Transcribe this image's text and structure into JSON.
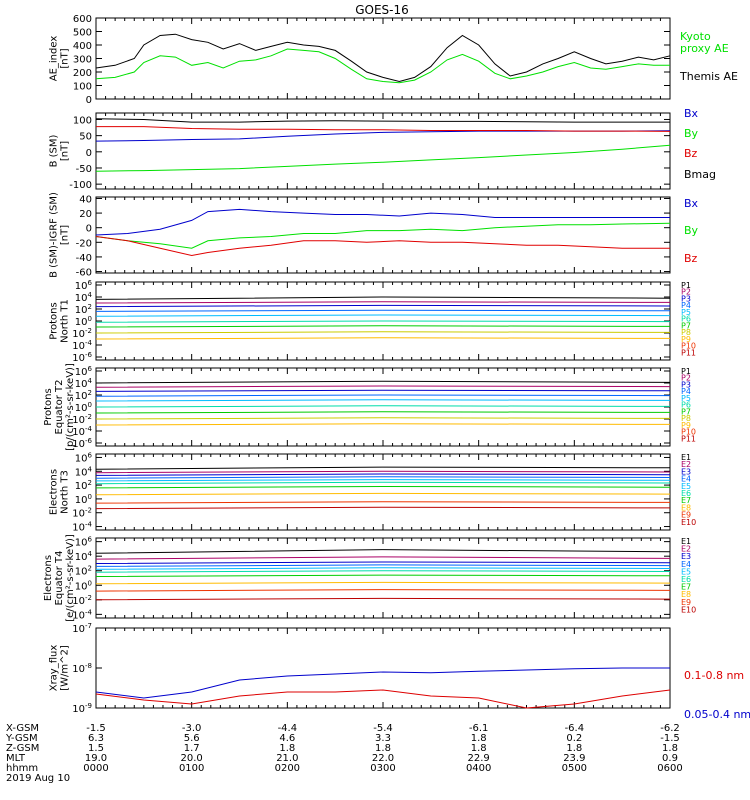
{
  "title": "GOES-16",
  "chart_data": [
    {
      "type": "line",
      "ylabel": [
        "AE_index",
        "[nT]"
      ],
      "y_ticks": [
        "0",
        "100",
        "200",
        "300",
        "400",
        "500",
        "600"
      ],
      "ylim": [
        0,
        600
      ],
      "y_scale": "linear",
      "x_hours": [
        0.0,
        0.2,
        0.4,
        0.5,
        0.67,
        0.83,
        1.0,
        1.17,
        1.33,
        1.5,
        1.67,
        1.83,
        2.0,
        2.17,
        2.33,
        2.5,
        2.67,
        2.83,
        3.0,
        3.17,
        3.33,
        3.5,
        3.67,
        3.83,
        4.0,
        4.17,
        4.33,
        4.5,
        4.67,
        4.83,
        5.0,
        5.17,
        5.33,
        5.5,
        5.67,
        5.83,
        6.0
      ],
      "series": [
        {
          "name": "Themis AE",
          "color": "#000000",
          "values": [
            230,
            250,
            300,
            400,
            470,
            480,
            440,
            420,
            370,
            410,
            360,
            390,
            420,
            400,
            390,
            360,
            280,
            200,
            160,
            130,
            160,
            240,
            380,
            470,
            400,
            260,
            170,
            200,
            260,
            300,
            350,
            300,
            260,
            280,
            310,
            290,
            320
          ]
        },
        {
          "name": "Kyoto proxy AE",
          "color": "#00e000",
          "values": [
            150,
            160,
            200,
            270,
            320,
            310,
            250,
            270,
            230,
            280,
            290,
            320,
            370,
            360,
            350,
            300,
            220,
            150,
            130,
            120,
            140,
            200,
            290,
            330,
            280,
            190,
            150,
            170,
            200,
            240,
            270,
            230,
            220,
            240,
            260,
            250,
            250
          ]
        }
      ],
      "legend": [
        "Kyoto",
        "proxy AE",
        "Themis AE"
      ]
    },
    {
      "type": "line",
      "ylabel": [
        "B (SM)",
        "[nT]"
      ],
      "y_ticks": [
        "-100",
        "-50",
        "0",
        "50",
        "100"
      ],
      "ylim": [
        -115,
        120
      ],
      "y_scale": "linear",
      "x_hours": [
        0.0,
        0.5,
        1.0,
        1.5,
        2.0,
        2.5,
        3.0,
        3.5,
        4.0,
        4.5,
        5.0,
        5.5,
        6.0
      ],
      "series": [
        {
          "name": "Bx",
          "color": "#0000cc",
          "values": [
            33,
            35,
            38,
            40,
            48,
            55,
            60,
            62,
            64,
            64,
            64,
            64,
            65
          ]
        },
        {
          "name": "By",
          "color": "#00e000",
          "values": [
            -60,
            -58,
            -55,
            -52,
            -45,
            -38,
            -32,
            -25,
            -18,
            -10,
            -2,
            8,
            20
          ]
        },
        {
          "name": "Bz",
          "color": "#e00000",
          "values": [
            78,
            78,
            72,
            70,
            70,
            68,
            68,
            66,
            66,
            66,
            64,
            64,
            63
          ]
        },
        {
          "name": "Bmag",
          "color": "#000000",
          "values": [
            102,
            100,
            92,
            92,
            95,
            96,
            95,
            94,
            94,
            93,
            92,
            92,
            92
          ]
        }
      ],
      "legend": [
        "Bx",
        "By",
        "Bz",
        "Bmag"
      ]
    },
    {
      "type": "line",
      "ylabel": [
        "B (SM)-IGRF (SM)",
        "[nT]"
      ],
      "y_ticks": [
        "-60",
        "-40",
        "-20",
        "0",
        "20",
        "40"
      ],
      "ylim": [
        -62,
        42
      ],
      "y_scale": "linear",
      "x_hours": [
        0.0,
        0.33,
        0.67,
        1.0,
        1.17,
        1.5,
        1.83,
        2.17,
        2.5,
        2.83,
        3.17,
        3.5,
        3.83,
        4.17,
        4.5,
        4.83,
        5.17,
        5.5,
        6.0
      ],
      "series": [
        {
          "name": "Bx",
          "color": "#0000cc",
          "values": [
            -10,
            -8,
            -2,
            10,
            22,
            25,
            22,
            20,
            18,
            18,
            16,
            20,
            18,
            14,
            14,
            14,
            14,
            14,
            14
          ]
        },
        {
          "name": "By",
          "color": "#00e000",
          "values": [
            -12,
            -18,
            -22,
            -28,
            -18,
            -14,
            -12,
            -8,
            -8,
            -4,
            -4,
            -2,
            -4,
            0,
            2,
            4,
            4,
            5,
            6
          ]
        },
        {
          "name": "Bz",
          "color": "#e00000",
          "values": [
            -12,
            -18,
            -28,
            -38,
            -34,
            -28,
            -24,
            -18,
            -18,
            -20,
            -18,
            -20,
            -20,
            -22,
            -24,
            -24,
            -26,
            -28,
            -28
          ]
        }
      ],
      "legend": [
        "Bx",
        "By",
        "Bz"
      ]
    },
    {
      "type": "line",
      "ylabel": [
        "Protons",
        "North T1"
      ],
      "y_ticks": [
        "10^-6",
        "10^-4",
        "10^-2",
        "10^0",
        "10^2",
        "10^4",
        "10^6"
      ],
      "ylim": [
        -6.5,
        6.5
      ],
      "y_scale": "log",
      "x_hours": [
        0.0,
        3.0,
        6.0
      ],
      "series": [
        {
          "name": "P1",
          "color": "#000000",
          "values_log10": [
            3.6,
            4.0,
            3.8
          ]
        },
        {
          "name": "P2",
          "color": "#aa0066",
          "values_log10": [
            3.0,
            3.2,
            3.1
          ]
        },
        {
          "name": "P3",
          "color": "#0000cc",
          "values_log10": [
            2.4,
            2.6,
            2.5
          ]
        },
        {
          "name": "P4",
          "color": "#0066ff",
          "values_log10": [
            1.6,
            1.8,
            1.7
          ]
        },
        {
          "name": "P5",
          "color": "#00bbff",
          "values_log10": [
            0.8,
            1.0,
            0.9
          ]
        },
        {
          "name": "P6",
          "color": "#00ddaa",
          "values_log10": [
            -0.2,
            0.0,
            -0.1
          ]
        },
        {
          "name": "P7",
          "color": "#00cc00",
          "values_log10": [
            -1.0,
            -0.8,
            -0.9
          ]
        },
        {
          "name": "P8",
          "color": "#cccc00",
          "values_log10": [
            -2.0,
            -1.8,
            -1.9
          ]
        },
        {
          "name": "P9",
          "color": "#ffbb00",
          "values_log10": [
            -3.0,
            -2.8,
            -2.9
          ]
        }
      ],
      "legend": [
        "P1",
        "P2",
        "P3",
        "P4",
        "P5",
        "P6",
        "P7",
        "P8",
        "P9",
        "P10",
        "P11"
      ]
    },
    {
      "type": "line",
      "ylabel": [
        "Protons",
        "Equator T2",
        "[p/(cm²-s-sr-keV)]"
      ],
      "y_ticks": [
        "10^-6",
        "10^-4",
        "10^-2",
        "10^0",
        "10^2",
        "10^4",
        "10^6"
      ],
      "ylim": [
        -6.5,
        6.5
      ],
      "y_scale": "log",
      "x_hours": [
        0.0,
        3.0,
        6.0
      ],
      "series": [
        {
          "name": "P1",
          "color": "#000000",
          "values_log10": [
            4.0,
            4.3,
            4.1
          ]
        },
        {
          "name": "P2",
          "color": "#aa0066",
          "values_log10": [
            3.3,
            3.5,
            3.4
          ]
        },
        {
          "name": "P3",
          "color": "#0000cc",
          "values_log10": [
            2.6,
            2.8,
            2.7
          ]
        },
        {
          "name": "P4",
          "color": "#0066ff",
          "values_log10": [
            1.8,
            2.0,
            1.9
          ]
        },
        {
          "name": "P5",
          "color": "#00bbff",
          "values_log10": [
            1.0,
            1.2,
            1.1
          ]
        },
        {
          "name": "P6",
          "color": "#00ddaa",
          "values_log10": [
            0.0,
            0.2,
            0.1
          ]
        },
        {
          "name": "P7",
          "color": "#00cc00",
          "values_log10": [
            -1.0,
            -0.8,
            -0.9
          ]
        },
        {
          "name": "P8",
          "color": "#cccc00",
          "values_log10": [
            -2.0,
            -1.8,
            -1.9
          ]
        },
        {
          "name": "P9",
          "color": "#ffbb00",
          "values_log10": [
            -3.0,
            -2.8,
            -2.9
          ]
        }
      ],
      "legend": [
        "P1",
        "P2",
        "P3",
        "P4",
        "P5",
        "P6",
        "P7",
        "P8",
        "P9",
        "P10",
        "P11"
      ]
    },
    {
      "type": "line",
      "ylabel": [
        "Electrons",
        "North T3"
      ],
      "y_ticks": [
        "10^-4",
        "10^-2",
        "10^0",
        "10^2",
        "10^4",
        "10^6"
      ],
      "ylim": [
        -4.5,
        6.5
      ],
      "y_scale": "log",
      "x_hours": [
        0.0,
        3.0,
        6.0
      ],
      "series": [
        {
          "name": "E1",
          "color": "#000000",
          "values_log10": [
            4.3,
            4.6,
            4.5
          ]
        },
        {
          "name": "E2",
          "color": "#aa0066",
          "values_log10": [
            3.8,
            4.0,
            3.9
          ]
        },
        {
          "name": "E3",
          "color": "#0000cc",
          "values_log10": [
            3.4,
            3.6,
            3.5
          ]
        },
        {
          "name": "E4",
          "color": "#0066ff",
          "values_log10": [
            3.0,
            3.2,
            3.1
          ]
        },
        {
          "name": "E5",
          "color": "#00bbff",
          "values_log10": [
            2.6,
            2.8,
            2.7
          ]
        },
        {
          "name": "E6",
          "color": "#00ddaa",
          "values_log10": [
            2.2,
            2.4,
            2.3
          ]
        },
        {
          "name": "E7",
          "color": "#00cc00",
          "values_log10": [
            1.6,
            1.8,
            1.7
          ]
        },
        {
          "name": "E8",
          "color": "#ffbb00",
          "values_log10": [
            0.6,
            0.8,
            0.7
          ]
        },
        {
          "name": "E9",
          "color": "#ee3300",
          "values_log10": [
            -0.6,
            -0.4,
            -0.5
          ]
        },
        {
          "name": "E10",
          "color": "#bb0000",
          "values_log10": [
            -1.4,
            -1.2,
            -1.3
          ]
        }
      ],
      "legend": [
        "E1",
        "E2",
        "E3",
        "E4",
        "E5",
        "E6",
        "E7",
        "E8",
        "E9",
        "E10"
      ]
    },
    {
      "type": "line",
      "ylabel": [
        "Electrons",
        "Equator T4",
        "[e/(cm²-s-sr-keV)]"
      ],
      "y_ticks": [
        "10^-4",
        "10^-2",
        "10^0",
        "10^2",
        "10^4",
        "10^6"
      ],
      "ylim": [
        -4.5,
        6.5
      ],
      "y_scale": "log",
      "x_hours": [
        0.0,
        3.0,
        6.0
      ],
      "series": [
        {
          "name": "E1",
          "color": "#000000",
          "values_log10": [
            4.4,
            4.9,
            4.6
          ]
        },
        {
          "name": "E2",
          "color": "#aa0066",
          "values_log10": [
            3.6,
            3.9,
            3.7
          ]
        },
        {
          "name": "E3",
          "color": "#0000cc",
          "values_log10": [
            3.0,
            3.2,
            3.1
          ]
        },
        {
          "name": "E4",
          "color": "#0066ff",
          "values_log10": [
            2.6,
            2.8,
            2.7
          ]
        },
        {
          "name": "E5",
          "color": "#00bbff",
          "values_log10": [
            2.2,
            2.4,
            2.3
          ]
        },
        {
          "name": "E6",
          "color": "#00ddaa",
          "values_log10": [
            1.8,
            2.0,
            1.9
          ]
        },
        {
          "name": "E7",
          "color": "#00cc00",
          "values_log10": [
            1.2,
            1.4,
            1.3
          ]
        },
        {
          "name": "E8",
          "color": "#ffbb00",
          "values_log10": [
            0.2,
            0.4,
            0.3
          ]
        },
        {
          "name": "E9",
          "color": "#ee3300",
          "values_log10": [
            -0.8,
            -0.6,
            -0.7
          ]
        },
        {
          "name": "E10",
          "color": "#bb0000",
          "values_log10": [
            -2.0,
            -1.8,
            -1.9
          ]
        }
      ],
      "legend": [
        "E1",
        "E2",
        "E3",
        "E4",
        "E5",
        "E6",
        "E7",
        "E8",
        "E9",
        "E10"
      ]
    },
    {
      "type": "line",
      "ylabel": [
        "Xray_flux",
        "[W/m^2]"
      ],
      "y_ticks": [
        "10^-9",
        "10^-8",
        "10^-7"
      ],
      "ylim": [
        -9,
        -7
      ],
      "y_scale": "log",
      "x_hours": [
        0.0,
        0.5,
        1.0,
        1.5,
        2.0,
        2.5,
        3.0,
        3.5,
        4.0,
        4.5,
        5.0,
        5.5,
        6.0
      ],
      "series": [
        {
          "name": "0.05-0.4 nm",
          "color": "#0000cc",
          "values_log10": [
            -8.6,
            -8.75,
            -8.6,
            -8.3,
            -8.2,
            -8.15,
            -8.1,
            -8.12,
            -8.08,
            -8.05,
            -8.02,
            -8.0,
            -8.0
          ]
        },
        {
          "name": "0.1-0.8 nm",
          "color": "#dd0000",
          "values_log10": [
            -8.65,
            -8.8,
            -8.9,
            -8.7,
            -8.6,
            -8.6,
            -8.55,
            -8.7,
            -8.75,
            -9.0,
            -8.9,
            -8.7,
            -8.55
          ]
        }
      ],
      "legend": [
        "0.1-0.8 nm",
        "0.05-0.4 nm"
      ]
    }
  ],
  "x_axis": {
    "ticks_hours": [
      0,
      1,
      2,
      3,
      4,
      5,
      6
    ],
    "rows": [
      {
        "label": "X-GSM",
        "values": [
          "-1.5",
          "-3.0",
          "-4.4",
          "-5.4",
          "-6.1",
          "-6.4",
          "-6.2"
        ]
      },
      {
        "label": "Y-GSM",
        "values": [
          "6.3",
          "5.6",
          "4.6",
          "3.3",
          "1.8",
          "0.2",
          "-1.5"
        ]
      },
      {
        "label": "Z-GSM",
        "values": [
          "1.5",
          "1.7",
          "1.8",
          "1.8",
          "1.8",
          "1.8",
          "1.8"
        ]
      },
      {
        "label": "MLT",
        "values": [
          "19.0",
          "20.0",
          "21.0",
          "22.0",
          "22.9",
          "23.9",
          "0.9"
        ]
      },
      {
        "label": "hhmm",
        "values": [
          "0000",
          "0100",
          "0200",
          "0300",
          "0400",
          "0500",
          "0600"
        ]
      }
    ],
    "date": "2019 Aug 10"
  }
}
